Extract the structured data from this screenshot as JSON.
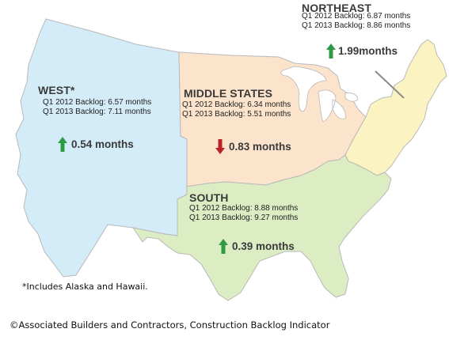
{
  "regions": {
    "west": {
      "name": "WEST*",
      "backlog_2012": "Q1 2012 Backlog: 6.57 months",
      "backlog_2013": "Q1 2013 Backlog: 7.11 months",
      "change_value": "0.54",
      "change_unit": "months",
      "direction": "up",
      "fill": "#d4ebf8"
    },
    "middle_states": {
      "name": "MIDDLE STATES",
      "backlog_2012": "Q1 2012 Backlog: 6.34 months",
      "backlog_2013": "Q1 2013 Backlog: 5.51 months",
      "change_value": "0.83",
      "change_unit": "months",
      "direction": "down",
      "fill": "#fbe3cc"
    },
    "northeast": {
      "name": "NORTHEAST",
      "backlog_2012": "Q1 2012 Backlog: 6.87 months",
      "backlog_2013": "Q1 2013 Backlog: 8.86 months",
      "change_value": "1.99",
      "change_unit": "months",
      "direction": "up",
      "fill": "#fbf4c2"
    },
    "south": {
      "name": "SOUTH",
      "backlog_2012": "Q1 2012 Backlog: 8.88 months",
      "backlog_2013": "Q1 2013 Backlog: 9.27 months",
      "change_value": "0.39",
      "change_unit": "months",
      "direction": "up",
      "fill": "#dcedc4"
    }
  },
  "colors": {
    "up_arrow": "#2e9a46",
    "down_arrow": "#b8232a",
    "border": "#b9b9b9"
  },
  "footnote": "*Includes Alaska and Hawaii.",
  "copyright": "©Associated Builders and Contractors, Construction Backlog Indicator"
}
